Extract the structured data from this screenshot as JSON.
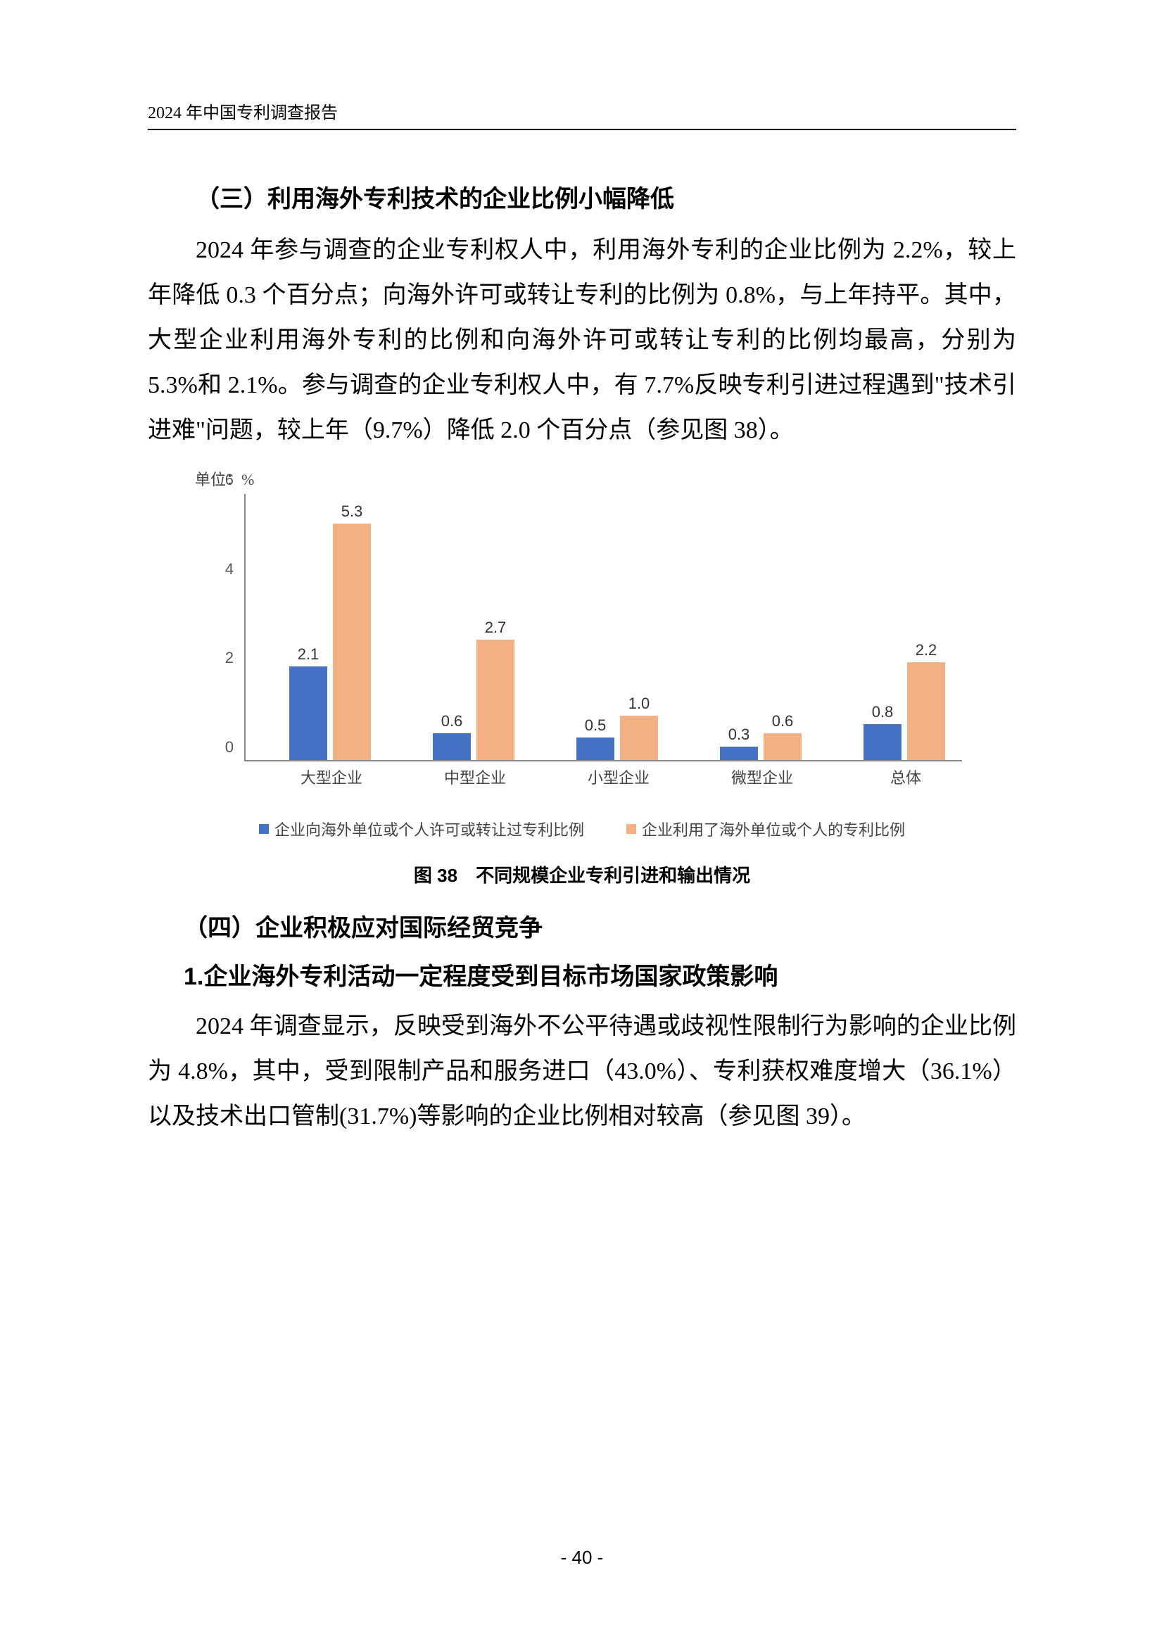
{
  "header": {
    "running_title": "2024 年中国专利调查报告"
  },
  "section3": {
    "title": "（三）利用海外专利技术的企业比例小幅降低",
    "para": "2024 年参与调查的企业专利权人中，利用海外专利的企业比例为 2.2%，较上年降低 0.3 个百分点；向海外许可或转让专利的比例为 0.8%，与上年持平。其中，大型企业利用海外专利的比例和向海外许可或转让专利的比例均最高，分别为 5.3%和 2.1%。参与调查的企业专利权人中，有 7.7%反映专利引进过程遇到\"技术引进难\"问题，较上年（9.7%）降低 2.0 个百分点（参见图 38）。"
  },
  "chart38": {
    "type": "bar",
    "unit_label": "单位：%",
    "ymax": 6,
    "ytick_step": 2,
    "yticks": [
      "0",
      "2",
      "4",
      "6"
    ],
    "categories": [
      "大型企业",
      "中型企业",
      "小型企业",
      "微型企业",
      "总体"
    ],
    "series": {
      "blue": {
        "label": "企业向海外单位或个人许可或转让过专利比例",
        "color": "#4472c4",
        "values": [
          2.1,
          0.6,
          0.5,
          0.3,
          0.8
        ]
      },
      "orange": {
        "label": "企业利用了海外单位或个人的专利比例",
        "color": "#f4b183",
        "values": [
          5.3,
          2.7,
          1.0,
          0.6,
          2.2
        ]
      }
    },
    "value_labels": {
      "blue": [
        "2.1",
        "0.6",
        "0.5",
        "0.3",
        "0.8"
      ],
      "orange": [
        "5.3",
        "2.7",
        "1.0",
        "0.6",
        "2.2"
      ]
    },
    "caption": "图 38　不同规模企业专利引进和输出情况",
    "axis_color": "#888888",
    "background_color": "#ffffff"
  },
  "section4": {
    "title": "（四）企业积极应对国际经贸竞争",
    "sub1_title": "1.企业海外专利活动一定程度受到目标市场国家政策影响",
    "sub1_para": "2024 年调查显示，反映受到海外不公平待遇或歧视性限制行为影响的企业比例为 4.8%，其中，受到限制产品和服务进口（43.0%）、专利获权难度增大（36.1%）以及技术出口管制(31.7%)等影响的企业比例相对较高（参见图 39）。"
  },
  "page_number": "- 40 -"
}
